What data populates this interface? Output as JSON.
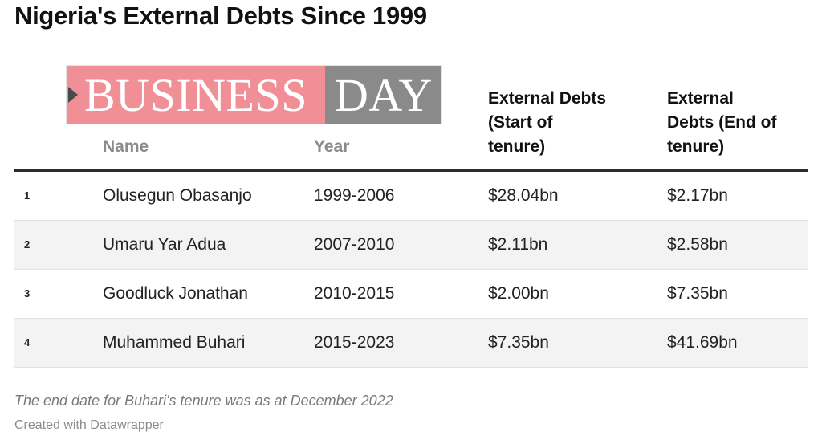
{
  "title": "Nigeria's External Debts Since 1999",
  "logo": {
    "brand_left": "BUSINESS",
    "brand_right": "DAY"
  },
  "table": {
    "columns": {
      "name": "Name",
      "year": "Year",
      "start": [
        "External Debts",
        "(Start of",
        "tenure)"
      ],
      "end": [
        "External",
        "Debts (End of",
        "tenure)"
      ]
    },
    "rows": [
      {
        "num": "1",
        "name": "Olusegun Obasanjo",
        "year": "1999-2006",
        "start": "$28.04bn",
        "end": "$2.17bn"
      },
      {
        "num": "2",
        "name": "Umaru Yar Adua",
        "year": "2007-2010",
        "start": "$2.11bn",
        "end": "$2.58bn"
      },
      {
        "num": "3",
        "name": "Goodluck Jonathan",
        "year": "2010-2015",
        "start": "$2.00bn",
        "end": "$7.35bn"
      },
      {
        "num": "4",
        "name": "Muhammed Buhari",
        "year": "2015-2023",
        "start": "$7.35bn",
        "end": "$41.69bn"
      }
    ]
  },
  "note": "The end date for Buhari's tenure was as at December 2022",
  "credit": "Created with Datawrapper",
  "colors": {
    "logo_left": "#f08f96",
    "logo_right": "#8a8a8a",
    "rule": "#2c2c2c",
    "alt_row": "#f3f3f3"
  },
  "chart_data": {
    "type": "table",
    "title": "Nigeria's External Debts Since 1999",
    "columns": [
      "",
      "Name",
      "Year",
      "External Debts (Start of tenure)",
      "External Debts (End of tenure)"
    ],
    "rows": [
      [
        "1",
        "Olusegun Obasanjo",
        "1999-2006",
        "$28.04bn",
        "$2.17bn"
      ],
      [
        "2",
        "Umaru Yar Adua",
        "2007-2010",
        "$2.11bn",
        "$2.58bn"
      ],
      [
        "3",
        "Goodluck Jonathan",
        "2010-2015",
        "$2.00bn",
        "$7.35bn"
      ],
      [
        "4",
        "Muhammed Buhari",
        "2015-2023",
        "$7.35bn",
        "$41.69bn"
      ]
    ],
    "annotations": [
      "The end date for Buhari's tenure was as at December 2022",
      "Created with Datawrapper"
    ]
  }
}
